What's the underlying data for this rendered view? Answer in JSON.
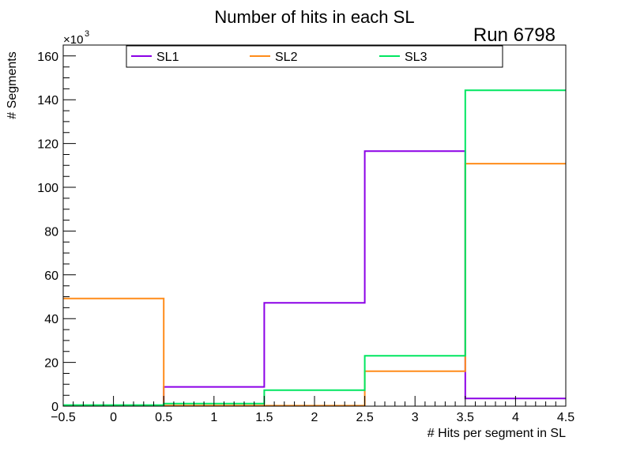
{
  "chart_data": {
    "type": "histogram",
    "title": "Number of hits in each SL",
    "annotation": "Run 6798",
    "xlabel": "# Hits per segment in SL",
    "ylabel": "# Segments",
    "y_multiplier_label": "×10",
    "y_multiplier_exponent": "3",
    "xlim": [
      -0.5,
      4.5
    ],
    "ylim": [
      0,
      165
    ],
    "x_ticks": [
      -0.5,
      0,
      0.5,
      1,
      1.5,
      2,
      2.5,
      3,
      3.5,
      4,
      4.5
    ],
    "x_tick_labels": [
      "−0.5",
      "0",
      "0.5",
      "1",
      "1.5",
      "2",
      "2.5",
      "3",
      "3.5",
      "4",
      "4.5"
    ],
    "y_ticks": [
      0,
      20,
      40,
      60,
      80,
      100,
      120,
      140,
      160
    ],
    "y_tick_labels": [
      "0",
      "20",
      "40",
      "60",
      "80",
      "100",
      "120",
      "140",
      "160"
    ],
    "bin_edges": [
      -0.5,
      0.5,
      1.5,
      2.5,
      3.5,
      4.5
    ],
    "series": [
      {
        "name": "SL1",
        "color": "#8b00e6",
        "values": [
          0.3,
          8.8,
          47.2,
          116.5,
          3.5
        ]
      },
      {
        "name": "SL2",
        "color": "#ff8c1a",
        "values": [
          49.2,
          0.3,
          0.2,
          16.0,
          110.8
        ]
      },
      {
        "name": "SL3",
        "color": "#00e660",
        "values": [
          0.5,
          1.2,
          7.3,
          23.0,
          144.3
        ]
      }
    ]
  }
}
